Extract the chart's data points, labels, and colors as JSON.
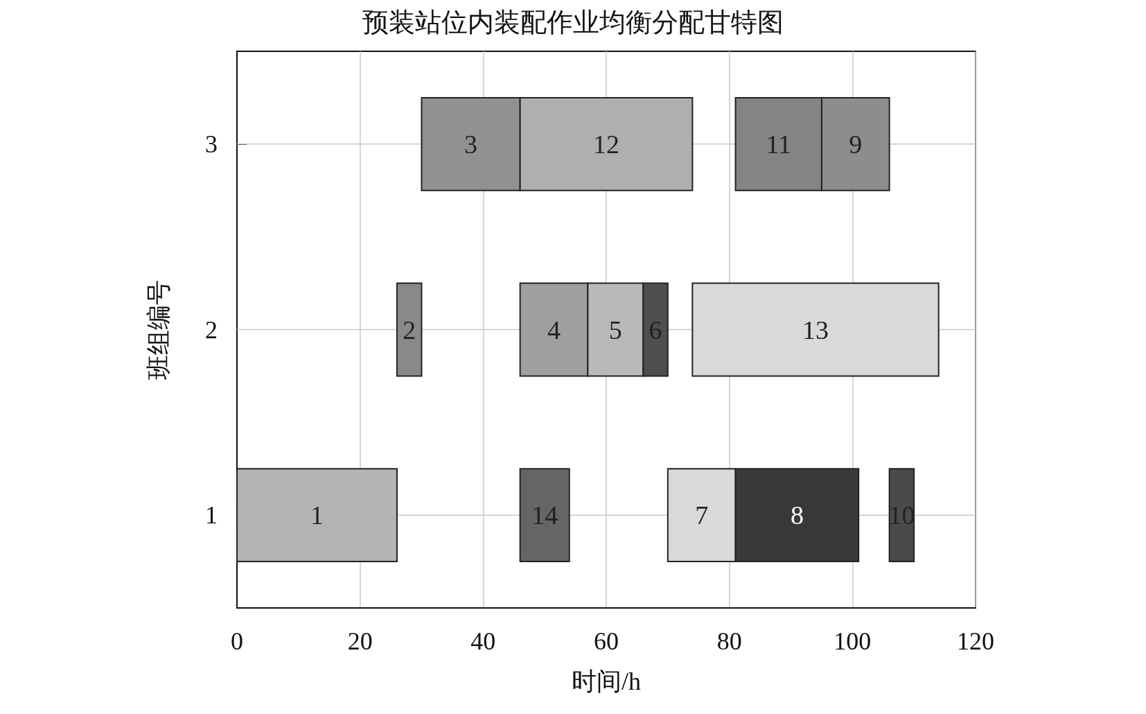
{
  "chart_data": {
    "type": "bar",
    "orientation": "horizontal",
    "title": "预装站位内装配作业均衡分配甘特图",
    "xlabel": "时间/h",
    "ylabel": "班组编号",
    "categories": [
      "3",
      "2",
      "1"
    ],
    "xlim": [
      0,
      120
    ],
    "xticks": [
      0,
      20,
      40,
      60,
      80,
      100,
      120
    ],
    "grid": true,
    "series": [
      {
        "name": "1",
        "color": "#b5b3b5",
        "base": [
          null,
          null,
          0
        ],
        "values": [
          null,
          null,
          26
        ]
      },
      {
        "name": "2",
        "color": "#8a8889",
        "base": [
          null,
          26,
          null
        ],
        "values": [
          null,
          4,
          null
        ]
      },
      {
        "name": "3",
        "color": "#929091",
        "base": [
          30,
          null,
          null
        ],
        "values": [
          16,
          null,
          null
        ]
      },
      {
        "name": "4",
        "color": "#a09e9f",
        "base": [
          null,
          46,
          null
        ],
        "values": [
          null,
          11,
          null
        ]
      },
      {
        "name": "5",
        "color": "#bab8b9",
        "base": [
          null,
          57,
          null
        ],
        "values": [
          null,
          9,
          null
        ]
      },
      {
        "name": "6",
        "color": "#4f4e4e",
        "base": [
          null,
          66,
          null
        ],
        "values": [
          null,
          4,
          null
        ]
      },
      {
        "name": "7",
        "color": "#d9d9d9",
        "base": [
          null,
          null,
          70
        ],
        "values": [
          null,
          null,
          11
        ]
      },
      {
        "name": "8",
        "color": "#3b383a",
        "base": [
          null,
          null,
          81
        ],
        "values": [
          null,
          null,
          20
        ]
      },
      {
        "name": "9",
        "color": "#8e8c8d",
        "base": [
          95,
          null,
          null
        ],
        "values": [
          11,
          null,
          null
        ]
      },
      {
        "name": "10",
        "color": "#4a4a4a",
        "base": [
          null,
          null,
          106
        ],
        "values": [
          null,
          null,
          4
        ]
      },
      {
        "name": "11",
        "color": "#858384",
        "base": [
          81,
          null,
          null
        ],
        "values": [
          14,
          null,
          null
        ]
      },
      {
        "name": "12",
        "color": "#afafaf",
        "base": [
          46,
          null,
          null
        ],
        "values": [
          28,
          null,
          null
        ]
      },
      {
        "name": "13",
        "color": "#d9d9d9",
        "base": [
          null,
          74,
          null
        ],
        "values": [
          null,
          40,
          null
        ]
      },
      {
        "name": "14",
        "color": "#666465",
        "base": [
          null,
          null,
          46
        ],
        "values": [
          null,
          null,
          8
        ]
      }
    ]
  }
}
